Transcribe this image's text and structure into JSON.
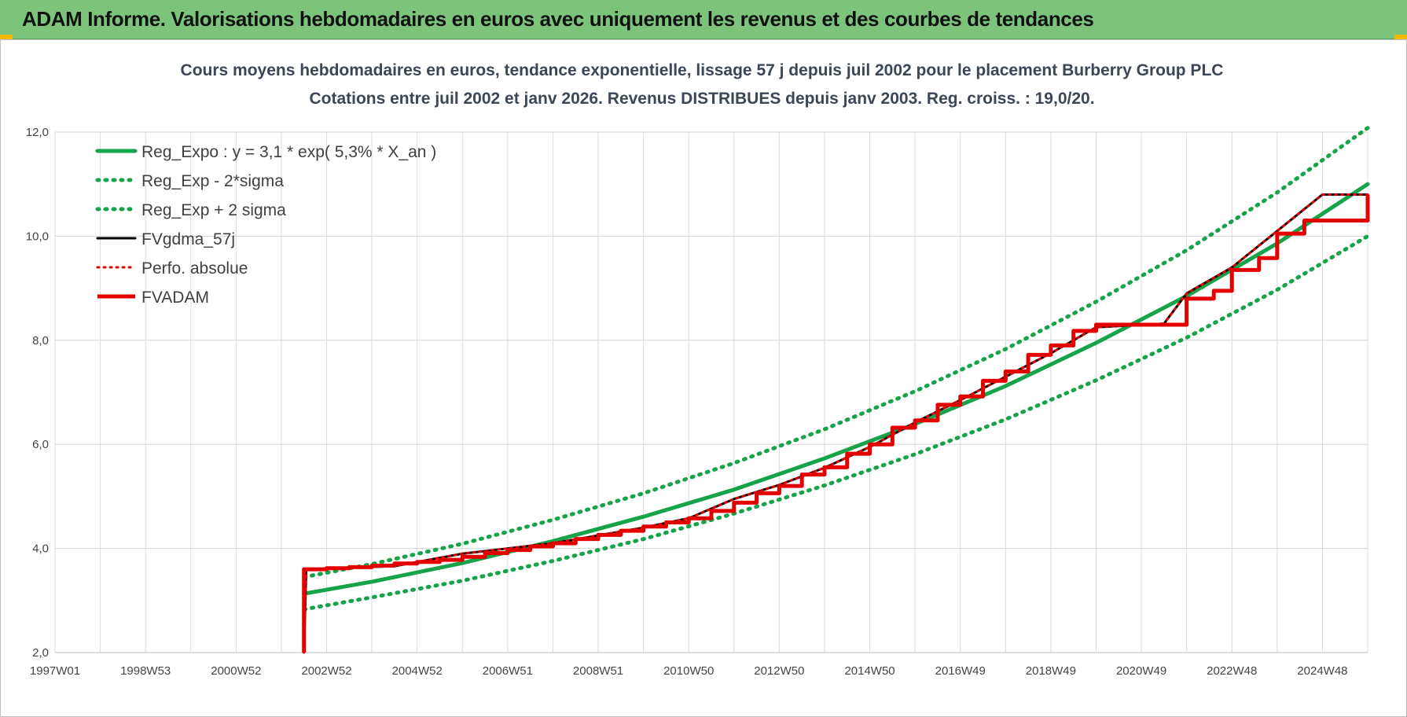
{
  "banner": {
    "title": "ADAM Informe. Valorisations hebdomadaires en euros avec uniquement les revenus et des courbes de tendances"
  },
  "colors": {
    "banner": "#7cc47b",
    "green": "#16a34a",
    "red": "#e50000",
    "black": "#000000"
  },
  "chart_data": {
    "type": "line",
    "title": "Cours moyens hebdomadaires en euros, tendance exponentielle, lissage 57 j depuis juil 2002 pour le placement Burberry Group PLC",
    "subtitle": "Cotations entre juil 2002 et janv 2026. Revenus DISTRIBUES depuis janv 2003. Reg. croiss. : 19,0/20.",
    "xlabel": "",
    "ylabel": "",
    "xlim": [
      1997.0,
      2026.0
    ],
    "ylim": [
      2.0,
      12.0
    ],
    "y_ticks": [
      "2,0",
      "4,0",
      "6,0",
      "8,0",
      "10,0",
      "12,0"
    ],
    "x_ticks": [
      {
        "label": "1997W01",
        "x": 1997.0
      },
      {
        "label": "1998W53",
        "x": 1999.0
      },
      {
        "label": "2000W52",
        "x": 2001.0
      },
      {
        "label": "2002W52",
        "x": 2003.0
      },
      {
        "label": "2004W52",
        "x": 2005.0
      },
      {
        "label": "2006W51",
        "x": 2007.0
      },
      {
        "label": "2008W51",
        "x": 2009.0
      },
      {
        "label": "2010W50",
        "x": 2011.0
      },
      {
        "label": "2012W50",
        "x": 2013.0
      },
      {
        "label": "2014W50",
        "x": 2015.0
      },
      {
        "label": "2016W49",
        "x": 2017.0
      },
      {
        "label": "2018W49",
        "x": 2019.0
      },
      {
        "label": "2020W49",
        "x": 2021.0
      },
      {
        "label": "2022W48",
        "x": 2023.0
      },
      {
        "label": "2024W48",
        "x": 2025.0
      }
    ],
    "grid": true,
    "legend_position": "top-left",
    "series": [
      {
        "name": "Reg_Expo : y = 3,1 * exp( 5,3% *  X_an )",
        "color": "#16a34a",
        "style": "solid",
        "x": [
          2002.5,
          2004,
          2006,
          2008,
          2010,
          2012,
          2014,
          2016,
          2018,
          2020,
          2022,
          2024,
          2026
        ],
        "y": [
          3.13,
          3.36,
          3.72,
          4.14,
          4.61,
          5.13,
          5.73,
          6.39,
          7.12,
          7.95,
          8.85,
          9.86,
          11.0
        ]
      },
      {
        "name": "Reg_Exp - 2*sigma",
        "color": "#16a34a",
        "style": "dotted",
        "x": [
          2002.5,
          2004,
          2006,
          2008,
          2010,
          2012,
          2014,
          2016,
          2018,
          2020,
          2022,
          2024,
          2026
        ],
        "y": [
          2.83,
          3.06,
          3.38,
          3.76,
          4.18,
          4.67,
          5.21,
          5.81,
          6.48,
          7.23,
          8.05,
          8.97,
          10.0
        ]
      },
      {
        "name": "Reg_Exp + 2 sigma",
        "color": "#16a34a",
        "style": "dotted",
        "x": [
          2002.5,
          2004,
          2006,
          2008,
          2010,
          2012,
          2014,
          2016,
          2018,
          2020,
          2022,
          2024,
          2026
        ],
        "y": [
          3.45,
          3.7,
          4.09,
          4.55,
          5.06,
          5.64,
          6.29,
          7.02,
          7.83,
          8.74,
          9.73,
          10.84,
          12.08
        ]
      },
      {
        "name": "FVgdma_57j",
        "color": "#000000",
        "style": "solid",
        "x": [
          2002.5,
          2002.55,
          2004.5,
          2006,
          2008,
          2010,
          2011,
          2012,
          2013,
          2014,
          2015,
          2016,
          2017,
          2018,
          2019,
          2020,
          2021.5,
          2022,
          2023,
          2024,
          2025,
          2026
        ],
        "y": [
          2.0,
          3.6,
          3.66,
          3.9,
          4.1,
          4.4,
          4.58,
          4.95,
          5.22,
          5.55,
          5.95,
          6.42,
          6.85,
          7.3,
          7.75,
          8.25,
          8.32,
          8.9,
          9.4,
          10.1,
          10.8,
          10.8
        ]
      },
      {
        "name": "Perfo. absolue",
        "color": "#e50000",
        "style": "dotted",
        "x": [
          2002.5,
          2002.55,
          2004.5,
          2006,
          2008,
          2010,
          2011,
          2012,
          2013,
          2014,
          2015,
          2016,
          2017,
          2018,
          2019,
          2020,
          2021.5,
          2022,
          2023,
          2024,
          2025,
          2026
        ],
        "y": [
          2.0,
          3.6,
          3.66,
          3.9,
          4.1,
          4.4,
          4.58,
          4.95,
          5.22,
          5.55,
          5.95,
          6.42,
          6.85,
          7.3,
          7.75,
          8.25,
          8.32,
          8.9,
          9.4,
          10.1,
          10.8,
          10.8
        ]
      },
      {
        "name": "FVADAM",
        "color": "#e50000",
        "style": "step",
        "x": [
          2002.5,
          2002.5,
          2003.0,
          2003.5,
          2004.0,
          2004.5,
          2005.0,
          2005.5,
          2006.0,
          2006.5,
          2007.0,
          2007.5,
          2008.0,
          2008.5,
          2009.0,
          2009.5,
          2010.0,
          2010.5,
          2011.0,
          2011.5,
          2012.0,
          2012.5,
          2013.0,
          2013.5,
          2014.0,
          2014.5,
          2015.0,
          2015.5,
          2016.0,
          2016.5,
          2017.0,
          2017.5,
          2018.0,
          2018.5,
          2019.0,
          2019.5,
          2020.0,
          2021.6,
          2022.0,
          2022.6,
          2023.0,
          2023.6,
          2024.0,
          2024.6,
          2026.0
        ],
        "y": [
          2.0,
          3.6,
          3.62,
          3.64,
          3.67,
          3.71,
          3.74,
          3.78,
          3.84,
          3.91,
          3.97,
          4.04,
          4.1,
          4.18,
          4.26,
          4.34,
          4.42,
          4.5,
          4.58,
          4.72,
          4.88,
          5.06,
          5.2,
          5.42,
          5.56,
          5.82,
          6.0,
          6.32,
          6.46,
          6.76,
          6.92,
          7.22,
          7.4,
          7.72,
          7.9,
          8.18,
          8.3,
          8.3,
          8.8,
          8.95,
          9.35,
          9.58,
          10.05,
          10.3,
          10.8
        ]
      }
    ]
  }
}
